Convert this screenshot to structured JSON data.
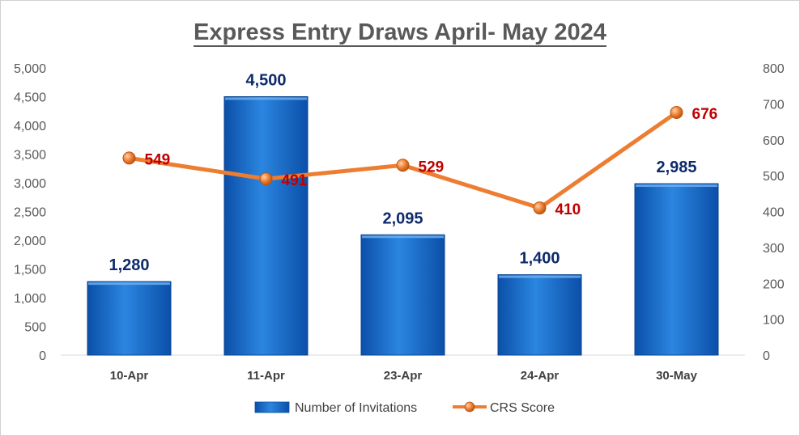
{
  "chart_data": {
    "type": "bar",
    "title": "Express Entry Draws April- May 2024",
    "categories": [
      "10-Apr",
      "11-Apr",
      "23-Apr",
      "24-Apr",
      "30-May"
    ],
    "series": [
      {
        "name": "Number of Invitations",
        "type": "bar",
        "axis": "left",
        "values": [
          1280,
          4500,
          2095,
          1400,
          2985
        ],
        "labels": [
          "1,280",
          "4,500",
          "2,095",
          "1,400",
          "2,985"
        ],
        "color": "#1f6fc8"
      },
      {
        "name": "CRS Score",
        "type": "line",
        "axis": "right",
        "values": [
          549,
          491,
          529,
          410,
          676
        ],
        "labels": [
          "549",
          "491",
          "529",
          "410",
          "676"
        ],
        "color": "#ed7d31"
      }
    ],
    "y_left": {
      "min": 0,
      "max": 5000,
      "ticks": [
        "0",
        "500",
        "1,000",
        "1,500",
        "2,000",
        "2,500",
        "3,000",
        "3,500",
        "4,000",
        "4,500",
        "5,000"
      ]
    },
    "y_right": {
      "min": 0,
      "max": 800,
      "ticks": [
        "0",
        "100",
        "200",
        "300",
        "400",
        "500",
        "600",
        "700",
        "800"
      ]
    },
    "grid": false,
    "legend": "bottom",
    "colors": {
      "bar": "#1f6fc8",
      "bar_label": "#0d2a6b",
      "line": "#ed7d31",
      "line_label": "#c00000"
    }
  }
}
